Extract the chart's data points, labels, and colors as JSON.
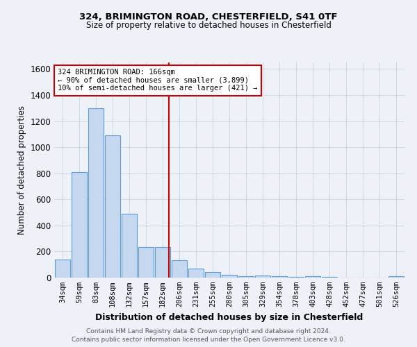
{
  "title1": "324, BRIMINGTON ROAD, CHESTERFIELD, S41 0TF",
  "title2": "Size of property relative to detached houses in Chesterfield",
  "xlabel": "Distribution of detached houses by size in Chesterfield",
  "ylabel": "Number of detached properties",
  "footnote1": "Contains HM Land Registry data © Crown copyright and database right 2024.",
  "footnote2": "Contains public sector information licensed under the Open Government Licence v3.0.",
  "bar_labels": [
    "34sqm",
    "59sqm",
    "83sqm",
    "108sqm",
    "132sqm",
    "157sqm",
    "182sqm",
    "206sqm",
    "231sqm",
    "255sqm",
    "280sqm",
    "305sqm",
    "329sqm",
    "354sqm",
    "378sqm",
    "403sqm",
    "428sqm",
    "452sqm",
    "477sqm",
    "501sqm",
    "526sqm"
  ],
  "bar_values": [
    140,
    810,
    1300,
    1090,
    490,
    235,
    235,
    135,
    70,
    40,
    20,
    10,
    15,
    8,
    3,
    12,
    3,
    0,
    0,
    0,
    10
  ],
  "bar_color": "#c5d8f0",
  "bar_edge_color": "#5b9bd5",
  "grid_color": "#d0d8e8",
  "background_color": "#eef2f8",
  "vline_x": 6.36,
  "vline_color": "#cc0000",
  "annotation_text": "324 BRIMINGTON ROAD: 166sqm\n← 90% of detached houses are smaller (3,899)\n10% of semi-detached houses are larger (421) →",
  "annotation_box_color": "#ffffff",
  "annotation_box_edge": "#cc0000",
  "ylim": [
    0,
    1650
  ],
  "yticks": [
    0,
    200,
    400,
    600,
    800,
    1000,
    1200,
    1400,
    1600
  ]
}
